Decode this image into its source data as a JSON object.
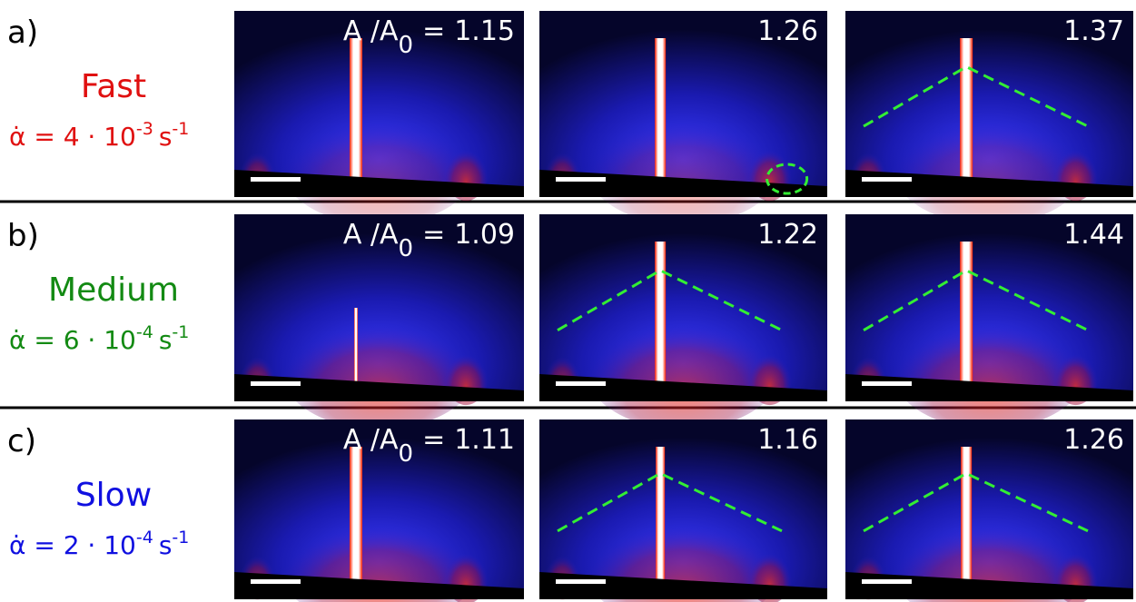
{
  "rows": [
    {
      "label": "a)",
      "speed": "Fast",
      "color": "#e01010",
      "rate": {
        "prefix": "α̇ = 4 · 10",
        "exp": "-3",
        "unit": "s",
        "unit_exp": "-1"
      },
      "panels": [
        {
          "ratio": "A /A",
          "sub": "0",
          "eq": "=",
          "value": 1.15
        },
        {
          "value": 1.26
        },
        {
          "value": 1.37
        }
      ]
    },
    {
      "label": "b)",
      "speed": "Medium",
      "color": "#138a13",
      "rate": {
        "prefix": "α̇ = 6 · 10",
        "exp": "-4",
        "unit": "s",
        "unit_exp": "-1"
      },
      "panels": [
        {
          "ratio": "A /A",
          "sub": "0",
          "eq": "=",
          "value": 1.09
        },
        {
          "value": 1.22
        },
        {
          "value": 1.44
        }
      ]
    },
    {
      "label": "c)",
      "speed": "Slow",
      "color": "#1010e0",
      "rate": {
        "prefix": "α̇ = 2 · 10",
        "exp": "-4",
        "unit": "s",
        "unit_exp": "-1"
      },
      "panels": [
        {
          "ratio": "A /A",
          "sub": "0",
          "eq": "=",
          "value": 1.11
        },
        {
          "value": 1.16
        },
        {
          "value": 1.26
        }
      ]
    }
  ]
}
